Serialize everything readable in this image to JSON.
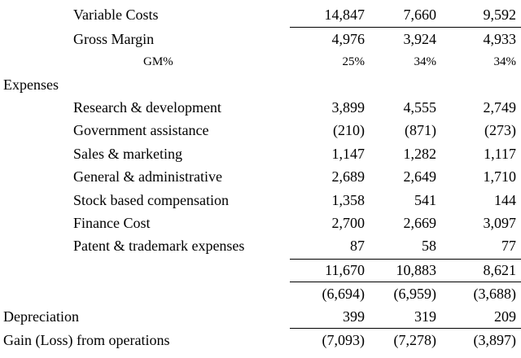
{
  "rows": {
    "variable_costs": {
      "label": "Variable Costs",
      "v1": "14,847",
      "v2": "7,660",
      "v3": "9,592"
    },
    "gross_margin": {
      "label": "Gross Margin",
      "v1": "4,976",
      "v2": "3,924",
      "v3": "4,933"
    },
    "gm_pct": {
      "label": "GM%",
      "v1": "25%",
      "v2": "34%",
      "v3": "34%"
    },
    "expenses_header": {
      "label": "Expenses"
    },
    "research": {
      "label": "Research & development",
      "v1": "3,899",
      "v2": "4,555",
      "v3": "2,749"
    },
    "gov_assist": {
      "label": "Government assistance",
      "v1": "(210)",
      "v2": "(871)",
      "v3": "(273)"
    },
    "sales": {
      "label": "Sales & marketing",
      "v1": "1,147",
      "v2": "1,282",
      "v3": "1,117"
    },
    "general": {
      "label": "General & administrative",
      "v1": "2,689",
      "v2": "2,649",
      "v3": "1,710"
    },
    "stock_comp": {
      "label": "Stock based compensation",
      "v1": "1,358",
      "v2": "541",
      "v3": "144"
    },
    "finance": {
      "label": "Finance Cost",
      "v1": "2,700",
      "v2": "2,669",
      "v3": "3,097"
    },
    "patent": {
      "label": "Patent & trademark expenses",
      "v1": "87",
      "v2": "58",
      "v3": "77"
    },
    "total_expenses": {
      "v1": "11,670",
      "v2": "10,883",
      "v3": "8,621"
    },
    "subtotal": {
      "v1": "(6,694)",
      "v2": "(6,959)",
      "v3": "(3,688)"
    },
    "depreciation": {
      "label": "Depreciation",
      "v1": "399",
      "v2": "319",
      "v3": "209"
    },
    "gain_loss": {
      "label": "Gain (Loss) from operations",
      "v1": "(7,093)",
      "v2": "(7,278)",
      "v3": "(3,897)"
    }
  }
}
